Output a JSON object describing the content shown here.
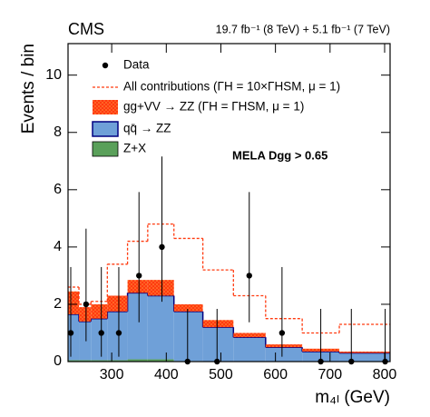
{
  "chart_data": {
    "type": "histogram",
    "title": "CMS",
    "subtitle": "19.7 fb⁻¹ (8 TeV) + 5.1 fb⁻¹ (7 TeV)",
    "x_label": "m₄ₗ (GeV)",
    "y_label": "Events / bin",
    "annotation": "MELA Dgg > 0.65",
    "xlim": [
      220,
      810
    ],
    "ylim": [
      0,
      11.1
    ],
    "xticks": [
      300,
      400,
      500,
      600,
      700,
      800
    ],
    "yticks": [
      0,
      2,
      4,
      6,
      8,
      10
    ],
    "bins": [
      220,
      240,
      262,
      292,
      329,
      366,
      414,
      467,
      523,
      582,
      649,
      717,
      810
    ],
    "stacked": true,
    "series": [
      {
        "name": "Z+X",
        "color": "#5aa05a",
        "values": [
          0.05,
          0.05,
          0.05,
          0.05,
          0.08,
          0.08,
          0.02,
          0.01,
          0,
          0,
          0,
          0
        ]
      },
      {
        "name": "qq̄ → ZZ",
        "color": "#6fa0d8",
        "edge_color": "#000080",
        "values": [
          1.6,
          1.35,
          1.45,
          1.7,
          2.32,
          2.22,
          1.73,
          1.19,
          0.85,
          0.5,
          0.35,
          0.3
        ]
      },
      {
        "name": "gg+VV → ZZ (ΓH = ΓHSM, μ = 1)",
        "color": "#ff3a0f",
        "values": [
          0.8,
          0.5,
          0.5,
          0.55,
          0.45,
          0.55,
          0.25,
          0.25,
          0.15,
          0.1,
          0.1,
          0.05
        ]
      }
    ],
    "total": {
      "name": "All contributions (ΓH = 10×ΓHSM, μ = 1)",
      "color": "#ff3a0f",
      "values": [
        2.6,
        2.0,
        2.1,
        3.4,
        4.2,
        4.8,
        4.3,
        3.2,
        2.3,
        1.5,
        1.0,
        1.3
      ]
    },
    "data": {
      "name": "Data",
      "color": "#000000",
      "x": [
        225,
        253,
        281,
        313,
        350,
        392,
        439,
        493,
        552,
        612,
        683,
        739,
        801
      ],
      "values": [
        1,
        2,
        1,
        1,
        3,
        4,
        0,
        0,
        3,
        1,
        0,
        0,
        0
      ],
      "error_low": [
        0.83,
        1.29,
        0.83,
        0.83,
        1.63,
        1.91,
        0,
        0,
        1.63,
        0.83,
        0,
        0,
        0
      ],
      "error_high": [
        2.3,
        2.64,
        2.3,
        2.3,
        2.92,
        3.16,
        1.84,
        1.84,
        2.92,
        2.3,
        1.84,
        1.84,
        1.84
      ]
    }
  }
}
